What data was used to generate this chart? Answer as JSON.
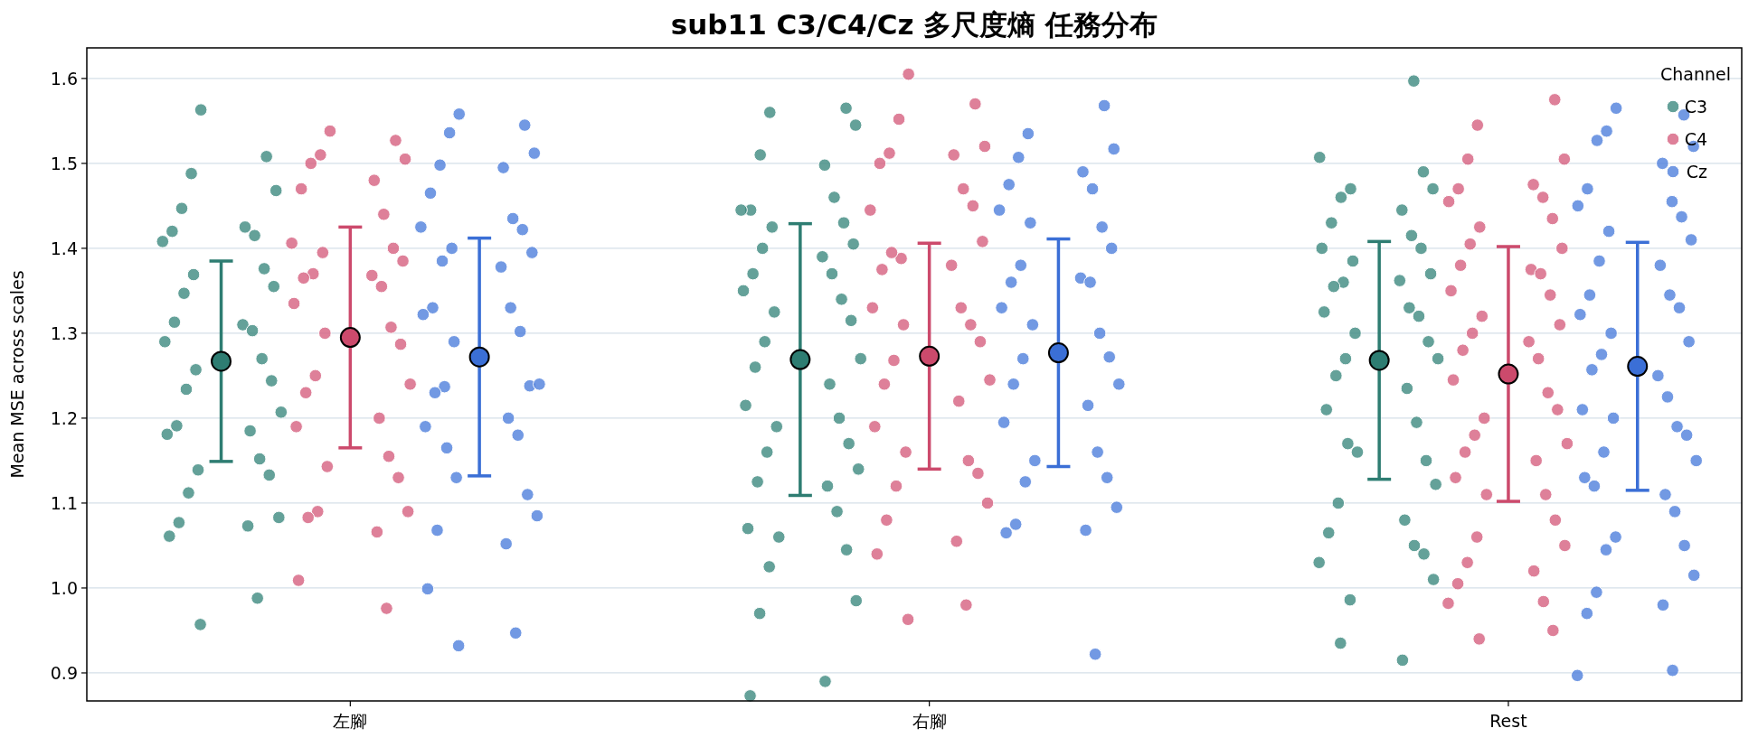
{
  "chart_data": {
    "type": "scatter",
    "title": "sub11 C3/C4/Cz 多尺度熵 任務分布",
    "ylabel": "Mean MSE across scales",
    "legend_title": "Channel",
    "legend": "top right",
    "grid": "y",
    "marker": "circle",
    "categories": [
      "左腳",
      "右腳",
      "Rest"
    ],
    "ylim": [
      0.867,
      1.636
    ],
    "yticks": [
      0.9,
      {
        "value": 1.0,
        "label": "1.0"
      },
      1.1,
      1.2,
      1.3,
      1.4,
      1.5,
      1.6
    ],
    "series": [
      {
        "name": "C3",
        "color": "#3d8a80",
        "x": [
          "左腳",
          "左腳",
          "左腳",
          "左腳",
          "左腳",
          "左腳",
          "左腳",
          "左腳",
          "左腳",
          "左腳",
          "左腳",
          "左腳",
          "左腳",
          "左腳",
          "左腳",
          "左腳",
          "左腳",
          "左腳",
          "左腳",
          "左腳",
          "左腳",
          "左腳",
          "左腳",
          "左腳",
          "左腳",
          "左腳",
          "左腳",
          "左腳",
          "左腳",
          "左腳",
          "左腳",
          "左腳",
          "左腳",
          "左腳",
          "左腳",
          "右腳",
          "右腳",
          "右腳",
          "右腳",
          "右腳",
          "右腳",
          "右腳",
          "右腳",
          "右腳",
          "右腳",
          "右腳",
          "右腳",
          "右腳",
          "右腳",
          "右腳",
          "右腳",
          "右腳",
          "右腳",
          "右腳",
          "右腳",
          "右腳",
          "右腳",
          "右腳",
          "右腳",
          "右腳",
          "右腳",
          "右腳",
          "右腳",
          "右腳",
          "右腳",
          "右腳",
          "右腳",
          "右腳",
          "右腳",
          "右腳",
          "右腳",
          "右腳",
          "右腳",
          "右腳",
          "右腳",
          "Rest",
          "Rest",
          "Rest",
          "Rest",
          "Rest",
          "Rest",
          "Rest",
          "Rest",
          "Rest",
          "Rest",
          "Rest",
          "Rest",
          "Rest",
          "Rest",
          "Rest",
          "Rest",
          "Rest",
          "Rest",
          "Rest",
          "Rest",
          "Rest",
          "Rest",
          "Rest",
          "Rest",
          "Rest",
          "Rest",
          "Rest",
          "Rest",
          "Rest",
          "Rest",
          "Rest",
          "Rest",
          "Rest",
          "Rest",
          "Rest",
          "Rest",
          "Rest",
          "Rest",
          "Rest",
          "Rest",
          "Rest"
        ],
        "values": [
          1.563,
          1.508,
          1.488,
          1.468,
          1.447,
          1.425,
          1.42,
          1.415,
          1.408,
          1.376,
          1.369,
          1.355,
          1.347,
          1.31,
          1.313,
          1.303,
          1.29,
          1.27,
          1.257,
          1.244,
          1.234,
          1.207,
          1.191,
          1.185,
          1.181,
          1.152,
          1.139,
          1.133,
          1.112,
          1.083,
          1.077,
          1.073,
          1.061,
          0.988,
          0.957,
          1.565,
          1.56,
          1.545,
          1.51,
          1.498,
          1.445,
          1.46,
          1.445,
          1.43,
          1.425,
          1.405,
          1.4,
          1.39,
          1.37,
          1.37,
          1.35,
          1.34,
          1.325,
          1.315,
          1.29,
          1.27,
          1.26,
          1.24,
          1.215,
          1.2,
          1.19,
          1.17,
          1.16,
          1.14,
          1.125,
          1.12,
          1.07,
          1.09,
          1.06,
          1.045,
          1.025,
          0.985,
          0.97,
          0.89,
          0.873,
          1.597,
          1.507,
          1.49,
          1.47,
          1.47,
          1.46,
          1.445,
          1.43,
          1.415,
          1.4,
          1.4,
          1.385,
          1.37,
          1.36,
          1.362,
          1.355,
          1.33,
          1.325,
          1.32,
          1.3,
          1.29,
          1.27,
          1.27,
          1.25,
          1.235,
          1.21,
          1.195,
          1.16,
          1.15,
          1.17,
          1.122,
          1.1,
          1.08,
          1.065,
          1.05,
          1.03,
          1.04,
          0.986,
          1.01,
          0.935,
          0.915
        ]
      },
      {
        "name": "C4",
        "color": "#d6607f",
        "x": [
          "左腳",
          "左腳",
          "左腳",
          "左腳",
          "左腳",
          "左腳",
          "左腳",
          "左腳",
          "左腳",
          "左腳",
          "左腳",
          "左腳",
          "左腳",
          "左腳",
          "左腳",
          "左腳",
          "左腳",
          "左腳",
          "左腳",
          "左腳",
          "左腳",
          "左腳",
          "左腳",
          "左腳",
          "左腳",
          "左腳",
          "左腳",
          "左腳",
          "左腳",
          "左腳",
          "左腳",
          "左腳",
          "左腳",
          "左腳",
          "右腳",
          "右腳",
          "右腳",
          "右腳",
          "右腳",
          "右腳",
          "右腳",
          "右腳",
          "右腳",
          "右腳",
          "右腳",
          "右腳",
          "右腳",
          "右腳",
          "右腳",
          "右腳",
          "右腳",
          "右腳",
          "右腳",
          "右腳",
          "右腳",
          "右腳",
          "右腳",
          "右腳",
          "右腳",
          "右腳",
          "右腳",
          "右腳",
          "右腳",
          "右腳",
          "右腳",
          "右腳",
          "右腳",
          "右腳",
          "右腳",
          "Rest",
          "Rest",
          "Rest",
          "Rest",
          "Rest",
          "Rest",
          "Rest",
          "Rest",
          "Rest",
          "Rest",
          "Rest",
          "Rest",
          "Rest",
          "Rest",
          "Rest",
          "Rest",
          "Rest",
          "Rest",
          "Rest",
          "Rest",
          "Rest",
          "Rest",
          "Rest",
          "Rest",
          "Rest",
          "Rest",
          "Rest",
          "Rest",
          "Rest",
          "Rest",
          "Rest",
          "Rest",
          "Rest",
          "Rest",
          "Rest",
          "Rest",
          "Rest",
          "Rest",
          "Rest",
          "Rest",
          "Rest",
          "Rest",
          "Rest",
          "Rest"
        ],
        "values": [
          1.538,
          1.527,
          1.51,
          1.505,
          1.5,
          1.48,
          1.47,
          1.44,
          1.406,
          1.4,
          1.395,
          1.385,
          1.37,
          1.368,
          1.365,
          1.355,
          1.335,
          1.307,
          1.3,
          1.287,
          1.25,
          1.24,
          1.23,
          1.2,
          1.19,
          1.155,
          1.143,
          1.13,
          1.09,
          1.09,
          1.083,
          1.066,
          1.009,
          0.976,
          1.605,
          1.57,
          1.552,
          1.52,
          1.512,
          1.51,
          1.5,
          1.47,
          1.445,
          1.45,
          1.388,
          1.408,
          1.395,
          1.38,
          1.375,
          1.33,
          1.33,
          1.31,
          1.31,
          1.29,
          1.268,
          1.245,
          1.24,
          1.22,
          1.19,
          1.15,
          1.16,
          1.135,
          1.12,
          1.1,
          1.08,
          1.055,
          1.04,
          0.98,
          0.963,
          1.575,
          1.545,
          1.505,
          1.505,
          1.475,
          1.47,
          1.46,
          1.455,
          1.435,
          1.425,
          1.4,
          1.405,
          1.375,
          1.38,
          1.37,
          1.35,
          1.345,
          1.32,
          1.31,
          1.3,
          1.29,
          1.28,
          1.27,
          1.245,
          1.23,
          1.2,
          1.21,
          1.18,
          1.17,
          1.16,
          1.15,
          1.13,
          1.11,
          1.11,
          1.08,
          1.06,
          1.05,
          1.03,
          1.02,
          1.005,
          0.984,
          0.982,
          0.95,
          0.94
        ]
      },
      {
        "name": "Cz",
        "color": "#4f7fdc",
        "x": [
          "左腳",
          "左腳",
          "左腳",
          "左腳",
          "左腳",
          "左腳",
          "左腳",
          "左腳",
          "左腳",
          "左腳",
          "左腳",
          "左腳",
          "左腳",
          "左腳",
          "左腳",
          "左腳",
          "左腳",
          "左腳",
          "左腳",
          "左腳",
          "左腳",
          "左腳",
          "左腳",
          "左腳",
          "左腳",
          "左腳",
          "左腳",
          "左腳",
          "左腳",
          "左腳",
          "左腳",
          "左腳",
          "左腳",
          "左腳",
          "左腳",
          "右腳",
          "右腳",
          "右腳",
          "右腳",
          "右腳",
          "右腳",
          "右腳",
          "右腳",
          "右腳",
          "右腳",
          "右腳",
          "右腳",
          "右腳",
          "右腳",
          "右腳",
          "右腳",
          "右腳",
          "右腳",
          "右腳",
          "右腳",
          "右腳",
          "右腳",
          "右腳",
          "右腳",
          "右腳",
          "右腳",
          "右腳",
          "右腳",
          "右腳",
          "右腳",
          "右腳",
          "右腳",
          "右腳",
          "Rest",
          "Rest",
          "Rest",
          "Rest",
          "Rest",
          "Rest",
          "Rest",
          "Rest",
          "Rest",
          "Rest",
          "Rest",
          "Rest",
          "Rest",
          "Rest",
          "Rest",
          "Rest",
          "Rest",
          "Rest",
          "Rest",
          "Rest",
          "Rest",
          "Rest",
          "Rest",
          "Rest",
          "Rest",
          "Rest",
          "Rest",
          "Rest",
          "Rest",
          "Rest",
          "Rest",
          "Rest",
          "Rest",
          "Rest",
          "Rest",
          "Rest",
          "Rest",
          "Rest",
          "Rest",
          "Rest",
          "Rest",
          "Rest",
          "Rest"
        ],
        "values": [
          1.558,
          1.545,
          1.536,
          1.512,
          1.498,
          1.495,
          1.465,
          1.435,
          1.425,
          1.422,
          1.4,
          1.395,
          1.385,
          1.378,
          1.33,
          1.33,
          1.322,
          1.302,
          1.29,
          1.238,
          1.237,
          1.24,
          1.23,
          1.2,
          1.19,
          1.18,
          1.13,
          1.11,
          1.165,
          1.085,
          1.068,
          1.052,
          0.999,
          0.947,
          0.932,
          1.568,
          1.535,
          1.517,
          1.507,
          1.49,
          1.475,
          1.47,
          1.445,
          1.425,
          1.43,
          1.4,
          1.38,
          1.365,
          1.36,
          1.36,
          1.33,
          1.3,
          1.31,
          1.272,
          1.27,
          1.24,
          1.24,
          1.215,
          1.195,
          1.16,
          1.15,
          1.13,
          1.125,
          1.095,
          1.075,
          1.068,
          1.065,
          0.922,
          1.565,
          1.557,
          1.538,
          1.52,
          1.527,
          1.5,
          1.47,
          1.455,
          1.45,
          1.437,
          1.42,
          1.41,
          1.385,
          1.38,
          1.345,
          1.345,
          1.322,
          1.33,
          1.3,
          1.29,
          1.275,
          1.25,
          1.257,
          1.225,
          1.21,
          1.19,
          1.2,
          1.18,
          1.16,
          1.15,
          1.12,
          1.11,
          1.13,
          1.09,
          1.06,
          1.05,
          1.045,
          1.015,
          0.995,
          0.98,
          0.97,
          0.903,
          0.897
        ]
      },
      {
        "color": "#2e7d72",
        "x": [
          "左腳",
          "右腳",
          "Rest"
        ],
        "values": [
          1.267,
          1.269,
          1.268
        ],
        "errors": [
          0.118,
          0.16,
          0.14
        ]
      },
      {
        "color": "#cc4a6c",
        "x": [
          "左腳",
          "右腳",
          "Rest"
        ],
        "values": [
          1.295,
          1.273,
          1.252
        ],
        "errors": [
          0.13,
          0.133,
          0.15
        ]
      },
      {
        "color": "#3b6fd6",
        "x": [
          "左腳",
          "右腳",
          "Rest"
        ],
        "values": [
          1.272,
          1.277,
          1.261
        ],
        "errors": [
          0.14,
          0.134,
          0.146
        ]
      }
    ]
  }
}
